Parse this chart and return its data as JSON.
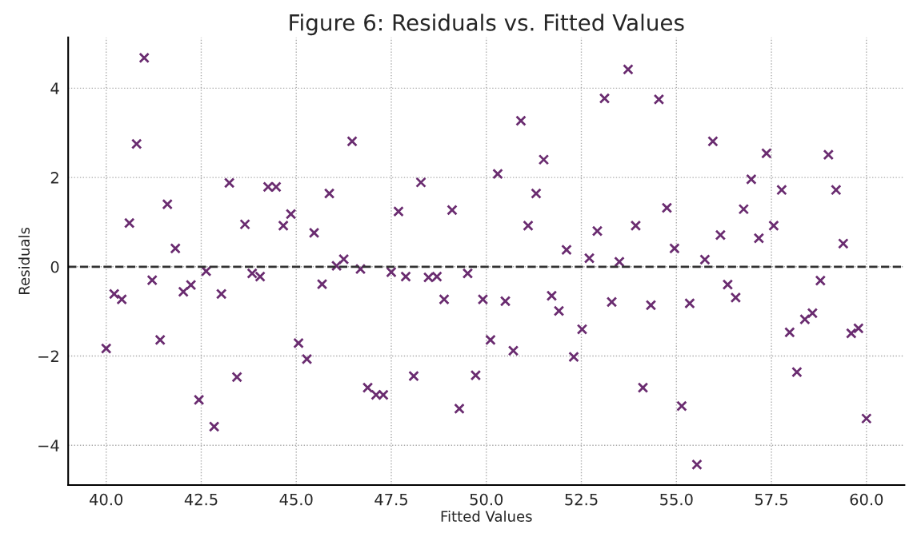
{
  "chart_data": {
    "type": "scatter",
    "title": "Figure 6: Residuals vs. Fitted Values",
    "xlabel": "Fitted Values",
    "ylabel": "Residuals",
    "x": [
      40.0,
      40.21,
      40.41,
      40.61,
      40.8,
      41.0,
      41.21,
      41.42,
      41.61,
      41.82,
      42.03,
      42.23,
      42.44,
      42.63,
      42.84,
      43.03,
      43.24,
      43.44,
      43.65,
      43.84,
      44.05,
      44.26,
      44.47,
      44.66,
      44.86,
      45.06,
      45.28,
      45.47,
      45.68,
      45.87,
      46.06,
      46.25,
      46.47,
      46.69,
      46.88,
      47.1,
      47.29,
      47.5,
      47.69,
      47.88,
      48.09,
      48.28,
      48.48,
      48.7,
      48.89,
      49.1,
      49.29,
      49.51,
      49.72,
      49.91,
      50.11,
      50.3,
      50.5,
      50.71,
      50.91,
      51.1,
      51.31,
      51.51,
      51.72,
      51.91,
      52.11,
      52.3,
      52.52,
      52.71,
      52.92,
      53.11,
      53.3,
      53.5,
      53.73,
      53.93,
      54.12,
      54.33,
      54.54,
      54.75,
      54.95,
      55.14,
      55.35,
      55.54,
      55.75,
      55.96,
      56.16,
      56.35,
      56.56,
      56.77,
      56.97,
      57.17,
      57.37,
      57.56,
      57.77,
      57.98,
      58.17,
      58.38,
      58.58,
      58.79,
      59.0,
      59.2,
      59.39,
      59.6,
      59.79,
      60.0
    ],
    "series": [
      {
        "color": "#6a2c70",
        "values": [
          -1.83,
          -0.61,
          -0.73,
          0.98,
          2.75,
          4.68,
          -0.3,
          -1.64,
          1.4,
          0.41,
          -0.56,
          -0.41,
          -2.98,
          -0.1,
          -3.58,
          -0.61,
          1.88,
          -2.47,
          0.95,
          -0.15,
          -0.22,
          1.79,
          1.79,
          0.92,
          1.18,
          -1.71,
          -2.07,
          0.76,
          -0.39,
          1.64,
          0.02,
          0.17,
          2.81,
          -0.05,
          -2.71,
          -2.87,
          -2.87,
          -0.12,
          1.24,
          -0.22,
          -2.45,
          1.89,
          -0.24,
          -0.22,
          -0.73,
          1.27,
          -3.18,
          -0.15,
          -2.43,
          -0.73,
          -1.64,
          2.08,
          -0.77,
          -1.88,
          3.27,
          0.92,
          1.64,
          2.4,
          -0.65,
          -0.99,
          0.38,
          -2.02,
          -1.4,
          0.19,
          0.8,
          3.77,
          -0.79,
          0.11,
          4.42,
          0.92,
          -2.71,
          -0.86,
          3.75,
          1.32,
          0.41,
          -3.12,
          -0.82,
          -4.43,
          0.16,
          2.81,
          0.71,
          -0.4,
          -0.69,
          1.29,
          1.96,
          0.64,
          2.54,
          0.92,
          1.72,
          -1.47,
          -2.36,
          -1.18,
          -1.04,
          -0.31,
          2.51,
          1.72,
          0.52,
          -1.49,
          -1.38,
          -3.4
        ]
      }
    ],
    "marker": "cross",
    "xlim": [
      39,
      61
    ],
    "ylim": [
      -4.89,
      5.14
    ],
    "xticks": [
      {
        "value": 40,
        "label": "40.0"
      },
      {
        "value": 42.5,
        "label": "42.5"
      },
      {
        "value": 45,
        "label": "45.0"
      },
      {
        "value": 47.5,
        "label": "47.5"
      },
      {
        "value": 50,
        "label": "50.0"
      },
      {
        "value": 52.5,
        "label": "52.5"
      },
      {
        "value": 55,
        "label": "55.0"
      },
      {
        "value": 57.5,
        "label": "57.5"
      },
      {
        "value": 60,
        "label": "60.0"
      }
    ],
    "yticks": [
      {
        "value": -4,
        "label": "−4"
      },
      {
        "value": -2,
        "label": "−2"
      },
      0,
      2,
      4
    ],
    "ref_lines": [
      {
        "axis": "y",
        "value": 0,
        "color": "#333333",
        "line_style": "dashed"
      }
    ],
    "grid": true,
    "legend": false
  }
}
